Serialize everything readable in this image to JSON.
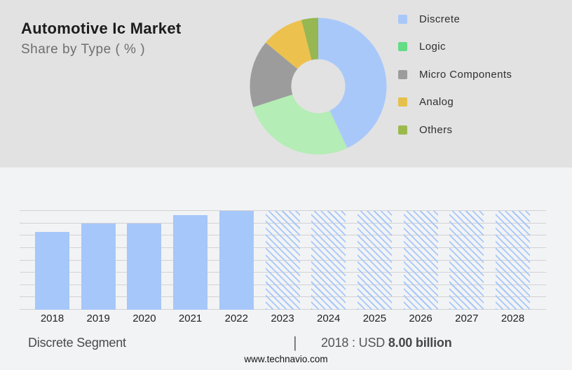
{
  "header": {
    "title": "Automotive Ic Market",
    "subtitle": "Share by Type ( % )"
  },
  "colors": {
    "header_bg": "#e2e2e3",
    "body_bg": "#f2f3f5",
    "gridline": "#d2d2d4",
    "bar_blue": "#a6c7f9"
  },
  "chart_data": [
    {
      "type": "pie",
      "title": "Automotive Ic Market",
      "subtitle": "Share by Type ( % )",
      "donut": true,
      "legend_position": "right",
      "segments": [
        {
          "label": "Discrete",
          "value_pct": 43,
          "slice_color": "#a9c8fa",
          "legend_color": "#a9c8fa"
        },
        {
          "label": "Logic",
          "value_pct": 27,
          "slice_color": "#b4edb5",
          "legend_color": "#64dc85"
        },
        {
          "label": "Micro Components",
          "value_pct": 16,
          "slice_color": "#9c9c9c",
          "legend_color": "#9c9c9c"
        },
        {
          "label": "Analog",
          "value_pct": 10,
          "slice_color": "#edc14e",
          "legend_color": "#e5c04c"
        },
        {
          "label": "Others",
          "value_pct": 4,
          "slice_color": "#96b751",
          "legend_color": "#9cba4c"
        }
      ],
      "note": "percentages estimated from arc angles; no numeric labels shown in image"
    },
    {
      "type": "bar",
      "categories": [
        "2018",
        "2019",
        "2020",
        "2021",
        "2022",
        "2023",
        "2024",
        "2025",
        "2026",
        "2027",
        "2028"
      ],
      "values": [
        8.0,
        8.87,
        8.87,
        9.73,
        10.16,
        10.16,
        10.16,
        10.16,
        10.16,
        10.16,
        10.16
      ],
      "forecast_from": "2023",
      "unit": "USD billion",
      "ylim": [
        0,
        10.16
      ],
      "gridline_count": 9,
      "grid": true,
      "bar_color": "#a6c7f9",
      "forecast_style": "diagonal-hatch",
      "note": "only 2018 is labeled (USD 8.00 billion); remaining values estimated from bar heights"
    }
  ],
  "footer": {
    "segment_label": "Discrete Segment",
    "separator": "|",
    "value_prefix": "2018 : USD ",
    "value_bold": "8.00 billion",
    "website": "www.technavio.com"
  }
}
